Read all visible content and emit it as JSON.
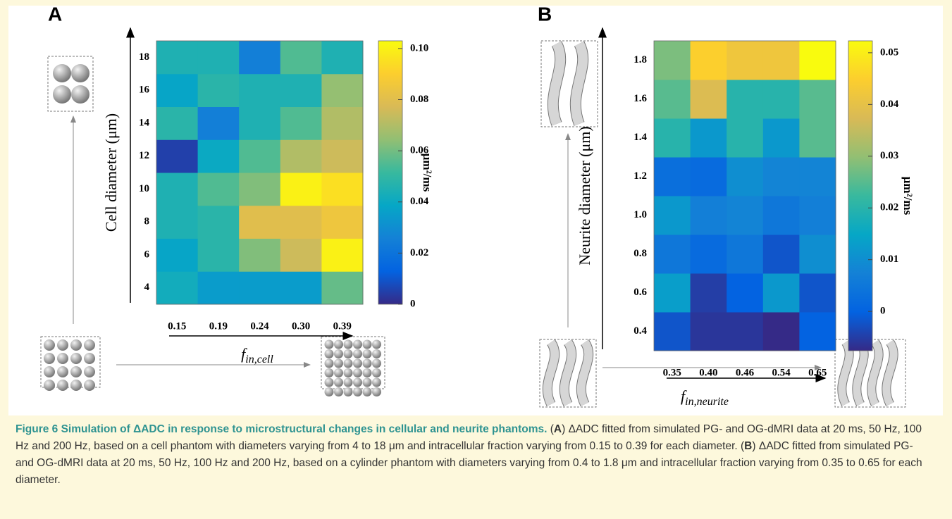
{
  "chart_data": [
    {
      "type": "heatmap",
      "panel": "A",
      "x_categories": [
        "0.15",
        "0.19",
        "0.24",
        "0.30",
        "0.39"
      ],
      "y_categories": [
        "4",
        "6",
        "8",
        "10",
        "12",
        "14",
        "16",
        "18"
      ],
      "values": [
        [
          0.042,
          0.035,
          0.035,
          0.035,
          0.058
        ],
        [
          0.038,
          0.048,
          0.062,
          0.075,
          0.1
        ],
        [
          0.045,
          0.048,
          0.08,
          0.08,
          0.085
        ],
        [
          0.045,
          0.055,
          0.062,
          0.1,
          0.095
        ],
        [
          0.005,
          0.04,
          0.055,
          0.07,
          0.075
        ],
        [
          0.048,
          0.025,
          0.045,
          0.055,
          0.07
        ],
        [
          0.038,
          0.048,
          0.045,
          0.045,
          0.065
        ],
        [
          0.045,
          0.045,
          0.025,
          0.055,
          0.045
        ]
      ],
      "y_label": "Cell diameter (μm)",
      "x_label": {
        "main": "f",
        "sub": "in,cell"
      },
      "colorbar_label": "μm²/ms",
      "zlim": [
        0,
        0.103
      ],
      "zticks": [
        0,
        0.02,
        0.04,
        0.06,
        0.08,
        {
          "value": 0.1,
          "label": "0.10"
        }
      ],
      "colormap": "parula"
    },
    {
      "type": "heatmap",
      "panel": "B",
      "x_categories": [
        "0.35",
        "0.40",
        "0.46",
        "0.54",
        "0.65"
      ],
      "y_categories": [
        "0.4",
        "0.6",
        "0.8",
        "1.0",
        "1.2",
        "1.4",
        "1.6",
        "1.8"
      ],
      "values": [
        [
          -0.002,
          -0.006,
          -0.006,
          -0.008,
          0.0
        ],
        [
          0.013,
          -0.005,
          0.0,
          0.012,
          -0.002
        ],
        [
          0.005,
          0.002,
          0.005,
          -0.002,
          0.01
        ],
        [
          0.012,
          0.007,
          0.008,
          0.005,
          0.007
        ],
        [
          0.003,
          0.002,
          0.01,
          0.008,
          0.008
        ],
        [
          0.02,
          0.012,
          0.02,
          0.012,
          0.025
        ],
        [
          0.025,
          0.038,
          0.02,
          0.02,
          0.025
        ],
        [
          0.028,
          0.045,
          0.042,
          0.042,
          0.053
        ]
      ],
      "y_label": "Neurite diameter (μm)",
      "x_label": {
        "main": "f",
        "sub": "in,neurite"
      },
      "colorbar_label": "μm²/ms",
      "zlim": [
        -0.0076,
        0.0523
      ],
      "zticks": [
        0,
        0.01,
        0.02,
        0.03,
        0.04,
        0.05
      ],
      "colormap": "parula"
    }
  ],
  "caption": {
    "title": "Figure 6 Simulation of ΔADC in response to microstructural changes in cellular and neurite phantoms.",
    "parts": [
      {
        "label": "A",
        "text": "ΔADC fitted from simulated PG- and OG-dMRI data at 20 ms, 50 Hz, 100 Hz and 200 Hz, based on a cell phantom with diameters varying from 4 to 18 μm and intracellular fraction varying from 0.15 to 0.39 for each diameter."
      },
      {
        "label": "B",
        "text": "ΔADC fitted from simulated PG- and OG-dMRI data at 20 ms, 50 Hz, 100 Hz and 200 Hz, based on a cylinder phantom with diameters varying from 0.4 to 1.8 μm and intracellular fraction varying from 0.35 to 0.65 for each diameter."
      }
    ]
  }
}
